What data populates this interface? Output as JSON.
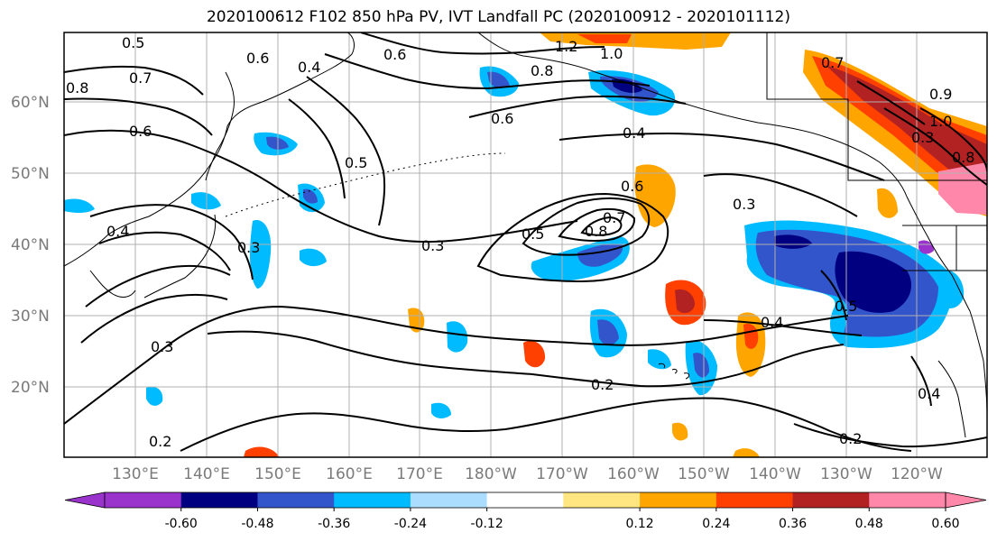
{
  "title": "2020100612 F102 850 hPa PV, IVT Landfall PC (2020100912 - 2020101112)",
  "lat_labels": [
    "60°N",
    "50°N",
    "40°N",
    "30°N",
    "20°N"
  ],
  "lon_labels": [
    "130°E",
    "140°E",
    "150°E",
    "160°E",
    "170°E",
    "180°W",
    "170°W",
    "160°W",
    "150°W",
    "140°W",
    "130°W",
    "120°W"
  ],
  "colorbar": {
    "colors": [
      "#9933cc",
      "#000080",
      "#3355cc",
      "#00bbff",
      "#aaddff",
      "#ffffff",
      "#ffe680",
      "#ffa500",
      "#ff4000",
      "#b22222",
      "#ff88aa"
    ],
    "tick_labels": [
      "-0.60",
      "-0.48",
      "-0.36",
      "-0.24",
      "-0.12",
      "0.12",
      "0.24",
      "0.36",
      "0.48",
      "0.60"
    ]
  },
  "contour_labels": [
    "0.5",
    "0.7",
    "0.8",
    "0.6",
    "0.6",
    "0.4",
    "0.6",
    "1.2",
    "1.0",
    "0.8",
    "0.6",
    "0.4",
    "0.5",
    "0.3",
    "0.4",
    "0.6",
    "0.8",
    "0.5",
    "0.7",
    "0.3",
    "0.4",
    "0.2",
    "0.3",
    "0.2",
    "0.5",
    "0.4",
    "0.2",
    "0.7",
    "1.0",
    "0.8",
    "0.3",
    "0.9",
    "0.3"
  ]
}
